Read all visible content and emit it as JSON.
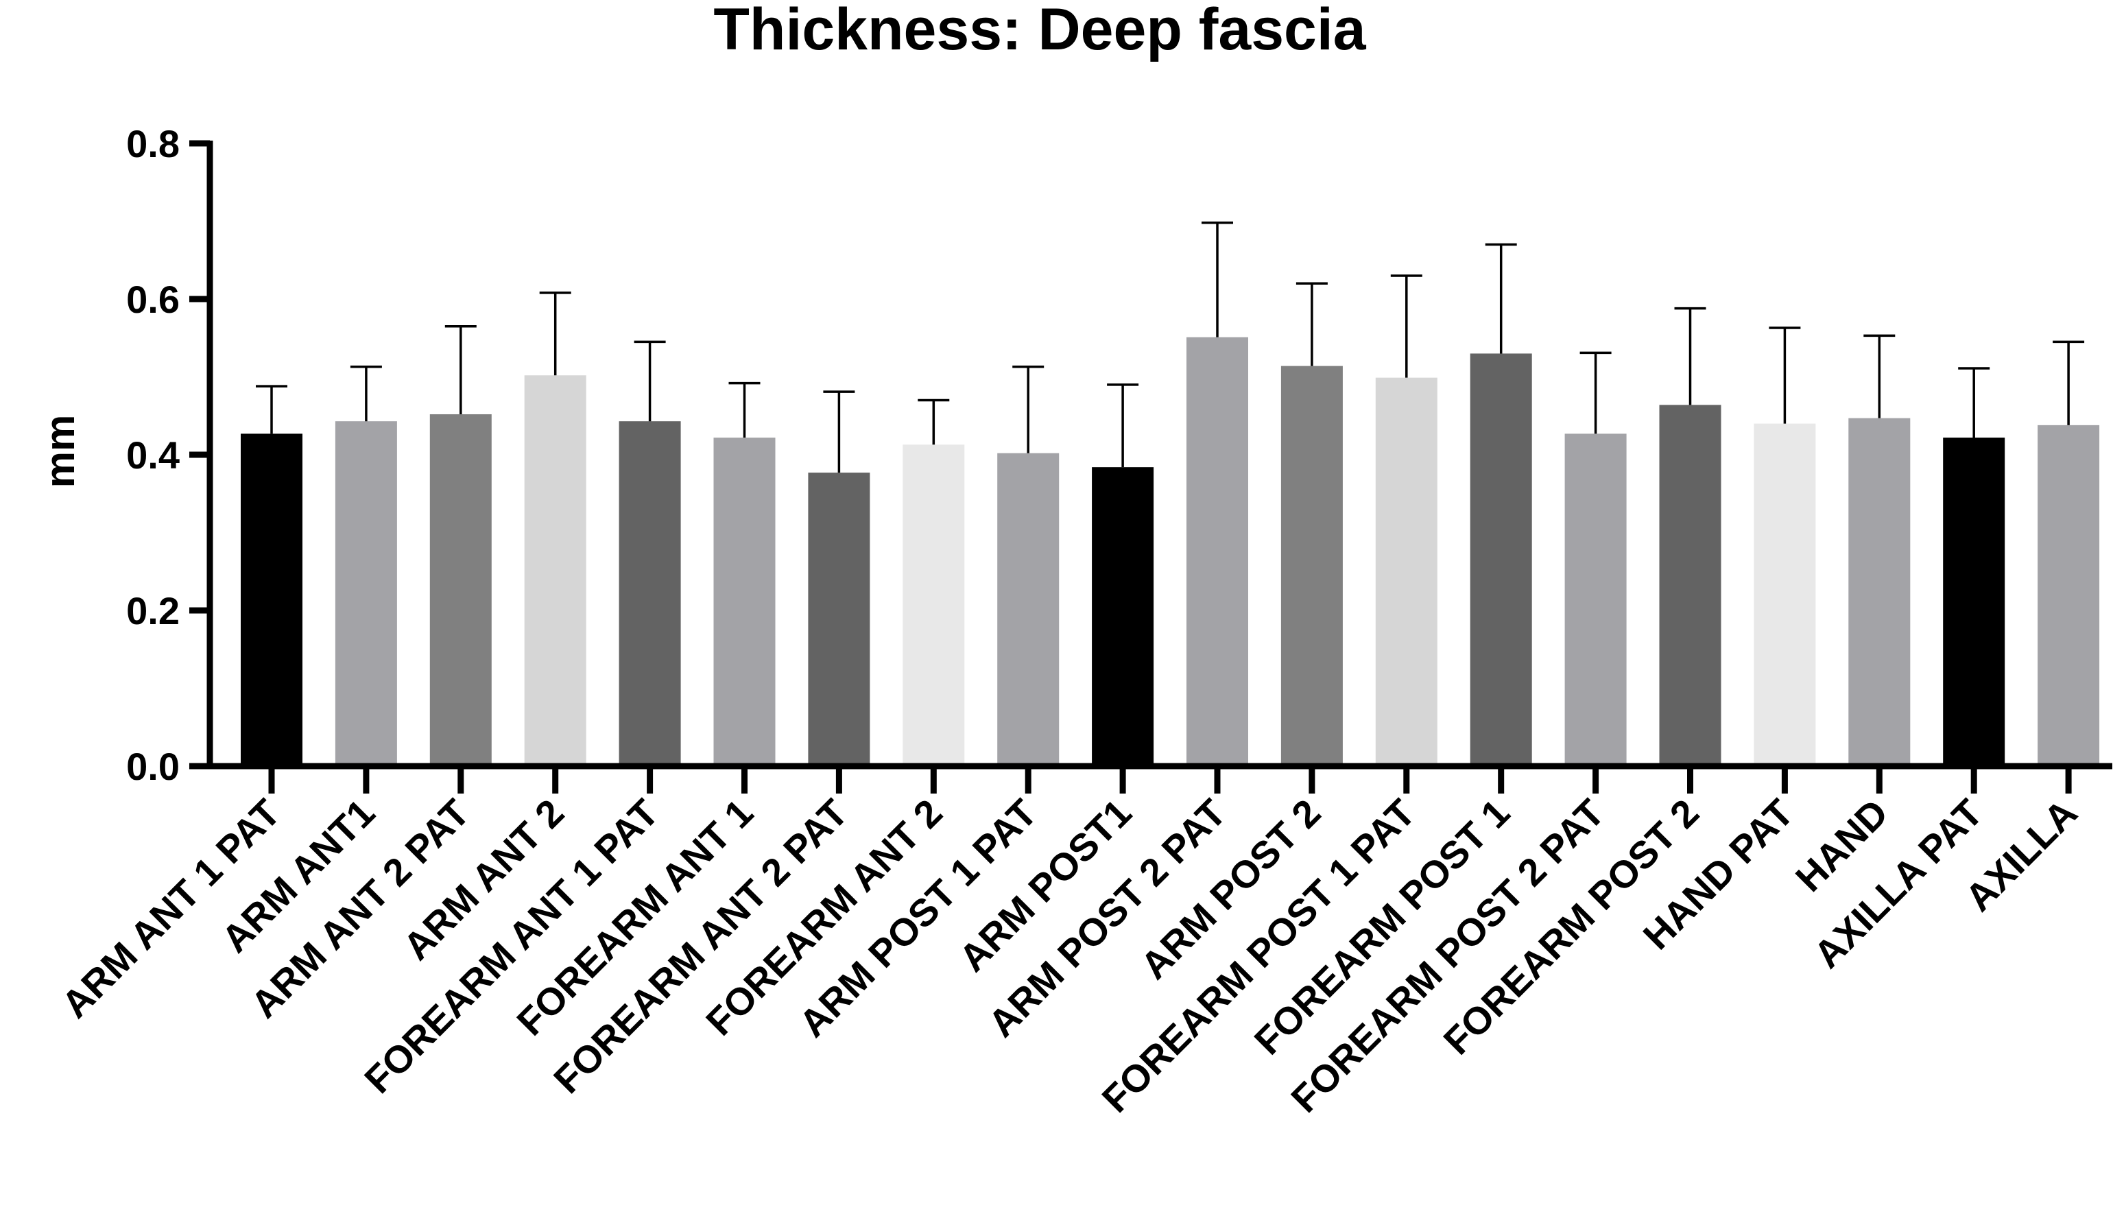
{
  "chart_data": {
    "type": "bar",
    "title": "Thickness: Deep fascia",
    "xlabel": "",
    "ylabel": "mm",
    "ylim": [
      0.0,
      0.8
    ],
    "yticks": [
      "0.0",
      "0.2",
      "0.4",
      "0.6",
      "0.8"
    ],
    "grid": false,
    "error_bars": "upper",
    "categories": [
      "ARM ANT 1 PAT",
      "ARM ANT1",
      "ARM ANT 2 PAT",
      "ARM ANT 2",
      "FOREARM ANT 1 PAT",
      "FOREARM ANT 1",
      "FOREARM ANT 2 PAT",
      "FOREARM ANT 2",
      "ARM POST 1 PAT",
      "ARM POST1",
      "ARM POST 2 PAT",
      "ARM POST 2",
      "FOREARM POST 1 PAT",
      "FOREARM POST 1",
      "FOREARM POST 2 PAT",
      "FOREARM POST 2",
      "HAND PAT",
      "HAND",
      "AXILLA PAT",
      "AXILLA"
    ],
    "values": [
      0.427,
      0.443,
      0.452,
      0.502,
      0.443,
      0.422,
      0.377,
      0.413,
      0.402,
      0.384,
      0.551,
      0.514,
      0.499,
      0.53,
      0.427,
      0.464,
      0.44,
      0.447,
      0.422,
      0.438
    ],
    "error_upper": [
      0.488,
      0.513,
      0.565,
      0.608,
      0.545,
      0.492,
      0.481,
      0.47,
      0.513,
      0.49,
      0.698,
      0.62,
      0.63,
      0.67,
      0.531,
      0.588,
      0.563,
      0.553,
      0.511,
      0.545
    ],
    "colors": [
      "#000000",
      "#a3a3a7",
      "#808080",
      "#d6d6d6",
      "#636363",
      "#a3a3a7",
      "#636363",
      "#e8e8e8",
      "#a3a3a7",
      "#000000",
      "#a3a3a7",
      "#808080",
      "#d6d6d6",
      "#636363",
      "#a3a3a7",
      "#636363",
      "#e8e8e8",
      "#a3a3a7",
      "#000000",
      "#a3a3a7"
    ]
  }
}
